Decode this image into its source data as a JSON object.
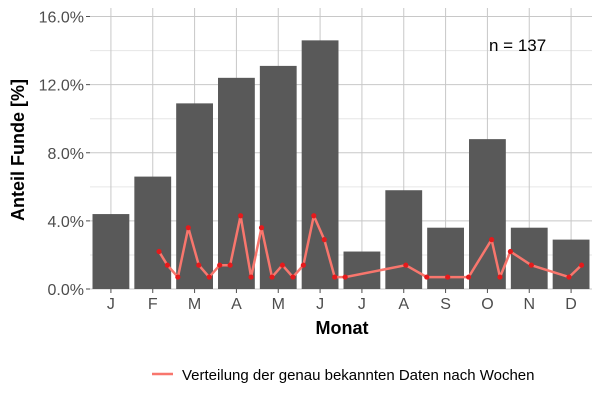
{
  "chart_data": {
    "type": "bar",
    "xlabel": "Monat",
    "ylabel": "Anteil Funde [%]",
    "annotation": "n = 137",
    "categories": [
      "J",
      "F",
      "M",
      "A",
      "M",
      "J",
      "J",
      "A",
      "S",
      "O",
      "N",
      "D"
    ],
    "values": [
      4.4,
      6.6,
      10.9,
      12.4,
      13.1,
      14.6,
      2.2,
      5.8,
      3.6,
      8.8,
      3.6,
      2.9
    ],
    "ylim": [
      0,
      16.5
    ],
    "yticks": [
      0,
      4,
      8,
      12,
      16
    ],
    "ytick_labels": [
      "0.0%",
      "4.0%",
      "8.0%",
      "12.0%",
      "16.0%"
    ],
    "grid": true,
    "bar_color": "#595959",
    "line_series": {
      "name": "Verteilung der genau bekannten Daten nach Wochen",
      "color": "#f8766d",
      "marker_color": "#e41a1c",
      "x": [
        2.15,
        2.35,
        2.6,
        2.85,
        3.1,
        3.35,
        3.6,
        3.85,
        4.1,
        4.35,
        4.6,
        4.85,
        5.1,
        5.35,
        5.6,
        5.85,
        6.1,
        6.35,
        6.6,
        8.05,
        8.55,
        9.05,
        9.55,
        10.1,
        10.3,
        10.55,
        11.05,
        11.95,
        12.25
      ],
      "y": [
        2.2,
        1.4,
        0.7,
        3.6,
        1.4,
        0.7,
        1.4,
        1.4,
        4.3,
        0.7,
        3.6,
        0.7,
        1.4,
        0.7,
        1.4,
        4.3,
        2.9,
        0.7,
        0.7,
        1.4,
        0.7,
        0.7,
        0.7,
        2.9,
        0.7,
        2.2,
        1.4,
        0.7,
        1.4
      ]
    },
    "legend_position": "bottom"
  }
}
